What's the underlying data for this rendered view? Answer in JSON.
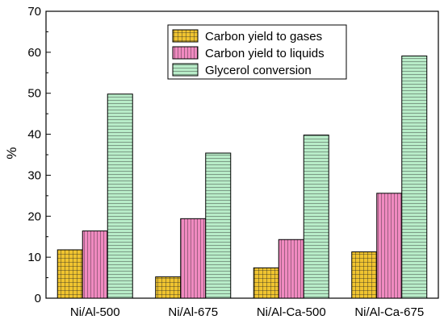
{
  "chart_data": {
    "type": "bar",
    "title": "",
    "xlabel": "",
    "ylabel": "%",
    "ylim": [
      0,
      70
    ],
    "yticks": [
      0,
      10,
      20,
      30,
      40,
      50,
      60,
      70
    ],
    "grid": false,
    "legend_position": "top-center",
    "categories": [
      "Ni/Al-500",
      "Ni/Al-675",
      "Ni/Al-Ca-500",
      "Ni/Al-Ca-675"
    ],
    "series": [
      {
        "name": "Carbon yield to gases",
        "color": "#f0c430",
        "pattern": "grid",
        "values": [
          11.8,
          5.2,
          7.4,
          11.3
        ]
      },
      {
        "name": "Carbon yield to liquids",
        "color": "#f08ac0",
        "pattern": "vertical-lines",
        "values": [
          16.4,
          19.4,
          14.3,
          25.6
        ]
      },
      {
        "name": "Glycerol conversion",
        "color": "#b8ecc8",
        "pattern": "horizontal-lines",
        "values": [
          49.8,
          35.4,
          39.8,
          59.1
        ]
      }
    ]
  }
}
